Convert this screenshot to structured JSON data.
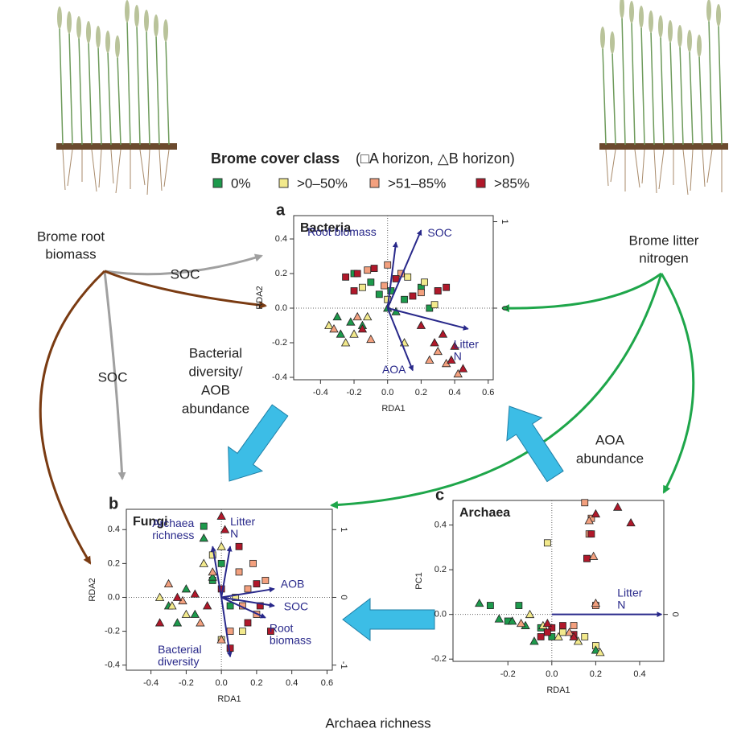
{
  "legend": {
    "title": "Brome cover class",
    "note": "(□A horizon, △B horizon)",
    "items": [
      {
        "label": "0%",
        "color": "#1d9a4c"
      },
      {
        "label": ">0–50%",
        "color": "#f2e98c"
      },
      {
        "label": ">51–85%",
        "color": "#f3a07e"
      },
      {
        "label": ">85%",
        "color": "#b0182a"
      }
    ]
  },
  "labels": {
    "root": [
      "Brome root",
      "biomass"
    ],
    "litter": [
      "Brome litter",
      "nitrogen"
    ],
    "soc1": "SOC",
    "soc2": "SOC",
    "bact": [
      "Bacterial",
      "diversity/",
      "AOB",
      "abundance"
    ],
    "aoa": [
      "AOA",
      "abundance"
    ],
    "arch": "Archaea richness"
  },
  "chart_data": [
    {
      "type": "scatter",
      "panel": "a",
      "title": "Bacteria",
      "x_label": "RDA1",
      "y_label": "RDA2",
      "xlim": [
        -0.56,
        0.63
      ],
      "ylim": [
        -0.414,
        0.535
      ],
      "xticks": [
        -0.4,
        -0.2,
        {
          "value": 0,
          "label": "0.0"
        },
        0.2,
        0.4,
        0.6
      ],
      "yticks": [
        -0.4,
        -0.2,
        {
          "value": 0,
          "label": "0.0"
        },
        0.2,
        0.4
      ],
      "y2lim": [
        -0.828,
        1.07
      ],
      "y2ticks": [
        0,
        1
      ],
      "series": [
        {
          "name": "0%",
          "marker": "square",
          "color": "#1d9a4c",
          "x": [
            -0.2,
            -0.1,
            0.02,
            0.1,
            0.2,
            0.25,
            -0.05
          ],
          "y": [
            0.2,
            0.15,
            0.1,
            0.05,
            0.12,
            0.0,
            0.08
          ]
        },
        {
          "name": ">0–50%",
          "marker": "square",
          "color": "#f2e98c",
          "x": [
            -0.15,
            0.0,
            0.12,
            0.28,
            0.22
          ],
          "y": [
            0.12,
            0.05,
            0.18,
            0.02,
            0.15
          ]
        },
        {
          "name": ">51–85%",
          "marker": "square",
          "color": "#f3a07e",
          "x": [
            -0.12,
            -0.02,
            0.08,
            0.2,
            0.3,
            0.0
          ],
          "y": [
            0.22,
            0.13,
            0.2,
            0.09,
            0.1,
            0.25
          ]
        },
        {
          "name": ">85%",
          "marker": "square",
          "color": "#b0182a",
          "x": [
            -0.25,
            -0.18,
            -0.08,
            0.05,
            0.15,
            0.3,
            0.35,
            -0.2
          ],
          "y": [
            0.18,
            0.2,
            0.23,
            0.17,
            0.07,
            0.1,
            0.12,
            0.1
          ]
        },
        {
          "name": "0%",
          "marker": "triangle",
          "color": "#1d9a4c",
          "x": [
            -0.3,
            -0.22,
            -0.15,
            0.0,
            0.05,
            -0.28
          ],
          "y": [
            -0.05,
            -0.08,
            -0.1,
            0.0,
            -0.02,
            -0.15
          ]
        },
        {
          "name": ">0–50%",
          "marker": "triangle",
          "color": "#f2e98c",
          "x": [
            -0.35,
            -0.25,
            -0.2,
            -0.12,
            0.1
          ],
          "y": [
            -0.1,
            -0.2,
            -0.15,
            -0.05,
            -0.2
          ]
        },
        {
          "name": ">51–85%",
          "marker": "triangle",
          "color": "#f3a07e",
          "x": [
            -0.32,
            -0.18,
            -0.1,
            0.25,
            0.3,
            0.35,
            0.42
          ],
          "y": [
            -0.12,
            -0.05,
            -0.18,
            -0.3,
            -0.25,
            -0.32,
            -0.38
          ]
        },
        {
          "name": ">85%",
          "marker": "triangle",
          "color": "#b0182a",
          "x": [
            -0.15,
            0.2,
            0.28,
            0.33,
            0.38,
            0.4,
            0.45
          ],
          "y": [
            -0.12,
            -0.1,
            -0.2,
            -0.15,
            -0.3,
            -0.22,
            -0.35
          ]
        }
      ],
      "vectors": [
        {
          "label": [
            "Root biomass"
          ],
          "x": 0.05,
          "y": 0.38
        },
        {
          "label": [
            "SOC"
          ],
          "x": 0.2,
          "y": 0.45
        },
        {
          "label": [
            "Litter",
            "N"
          ],
          "x": 0.48,
          "y": -0.12
        },
        {
          "label": [
            "AOA"
          ],
          "x": 0.15,
          "y": -0.36
        }
      ]
    },
    {
      "type": "scatter",
      "panel": "b",
      "title": "Fungi",
      "x_label": "RDA1",
      "y_label": "RDA2",
      "xlim": [
        -0.54,
        0.63
      ],
      "ylim": [
        -0.43,
        0.52
      ],
      "xticks": [
        -0.4,
        -0.2,
        {
          "value": 0,
          "label": "0.0"
        },
        0.2,
        0.4,
        0.6
      ],
      "yticks": [
        -0.4,
        -0.2,
        {
          "value": 0,
          "label": "0.0"
        },
        0.2,
        0.4
      ],
      "y2lim": [
        -1.075,
        1.3
      ],
      "y2ticks": [
        -1,
        0,
        1
      ],
      "series": [
        {
          "name": "0%",
          "marker": "square",
          "color": "#1d9a4c",
          "x": [
            -0.1,
            0.0,
            0.05,
            -0.05
          ],
          "y": [
            0.42,
            0.2,
            -0.05,
            0.1
          ]
        },
        {
          "name": ">0–50%",
          "marker": "square",
          "color": "#f2e98c",
          "x": [
            -0.05,
            0.08,
            0.12,
            0.0
          ],
          "y": [
            0.25,
            0.0,
            -0.2,
            -0.25
          ]
        },
        {
          "name": ">51–85%",
          "marker": "square",
          "color": "#f3a07e",
          "x": [
            0.1,
            0.15,
            0.2,
            0.25,
            0.05,
            0.18,
            0.12
          ],
          "y": [
            0.15,
            0.05,
            -0.1,
            0.1,
            -0.2,
            0.2,
            -0.05
          ]
        },
        {
          "name": ">85%",
          "marker": "square",
          "color": "#b0182a",
          "x": [
            0.1,
            0.15,
            0.22,
            0.28,
            0.2,
            0.05,
            0.0
          ],
          "y": [
            0.3,
            -0.15,
            -0.05,
            -0.2,
            0.08,
            -0.3,
            0.05
          ]
        },
        {
          "name": "0%",
          "marker": "triangle",
          "color": "#1d9a4c",
          "x": [
            -0.3,
            -0.2,
            -0.1,
            -0.05,
            -0.15,
            -0.25
          ],
          "y": [
            -0.05,
            0.05,
            0.35,
            0.12,
            -0.1,
            -0.15
          ]
        },
        {
          "name": ">0–50%",
          "marker": "triangle",
          "color": "#f2e98c",
          "x": [
            -0.35,
            -0.2,
            -0.1,
            0.0,
            -0.28
          ],
          "y": [
            0.0,
            -0.1,
            0.2,
            0.3,
            -0.05
          ]
        },
        {
          "name": ">51–85%",
          "marker": "triangle",
          "color": "#f3a07e",
          "x": [
            -0.3,
            -0.22,
            -0.12,
            -0.05,
            0.0
          ],
          "y": [
            0.08,
            -0.02,
            -0.15,
            0.15,
            -0.25
          ]
        },
        {
          "name": ">85%",
          "marker": "triangle",
          "color": "#b0182a",
          "x": [
            -0.35,
            -0.25,
            -0.15,
            0.0,
            -0.08,
            0.02
          ],
          "y": [
            -0.15,
            0.0,
            0.02,
            0.48,
            -0.05,
            0.4
          ]
        }
      ],
      "vectors": [
        {
          "label": [
            "Archaea",
            "richness"
          ],
          "x": -0.05,
          "y": 0.3
        },
        {
          "label": [
            "Litter",
            "N"
          ],
          "x": 0.05,
          "y": 0.3
        },
        {
          "label": [
            "AOB"
          ],
          "x": 0.3,
          "y": 0.05
        },
        {
          "label": [
            "SOC"
          ],
          "x": 0.3,
          "y": -0.05
        },
        {
          "label": [
            "Root",
            "biomass"
          ],
          "x": 0.25,
          "y": -0.12
        },
        {
          "label": [
            "Bacterial",
            "diversity"
          ],
          "x": 0.05,
          "y": -0.35
        }
      ]
    },
    {
      "type": "scatter",
      "panel": "c",
      "title": "Archaea",
      "x_label": "RDA1",
      "y_label": "PC1",
      "xlim": [
        -0.45,
        0.51
      ],
      "ylim": [
        -0.21,
        0.51
      ],
      "xticks": [
        -0.2,
        {
          "value": 0,
          "label": "0.0"
        },
        0.2,
        0.4
      ],
      "yticks": [
        -0.2,
        {
          "value": 0,
          "label": "0.0"
        },
        0.2,
        0.4
      ],
      "y2lim": [
        -0.21,
        0.51
      ],
      "y2ticks": [
        0
      ],
      "series": [
        {
          "name": "0%",
          "marker": "square",
          "color": "#1d9a4c",
          "x": [
            -0.28,
            -0.15,
            -0.2,
            -0.05,
            0.0
          ],
          "y": [
            0.04,
            0.04,
            -0.03,
            -0.06,
            -0.1
          ]
        },
        {
          "name": ">0–50%",
          "marker": "square",
          "color": "#f2e98c",
          "x": [
            -0.02,
            0.15,
            0.2,
            0.05
          ],
          "y": [
            0.32,
            -0.1,
            -0.14,
            -0.08
          ]
        },
        {
          "name": ">51–85%",
          "marker": "square",
          "color": "#f3a07e",
          "x": [
            0.15,
            0.17,
            0.16,
            0.18,
            0.2,
            0.1
          ],
          "y": [
            0.5,
            0.36,
            0.25,
            0.43,
            0.04,
            -0.05
          ]
        },
        {
          "name": ">85%",
          "marker": "square",
          "color": "#b0182a",
          "x": [
            0.0,
            -0.02,
            0.1,
            0.16,
            0.18,
            0.05,
            -0.05
          ],
          "y": [
            -0.06,
            -0.08,
            -0.09,
            0.25,
            0.36,
            -0.05,
            -0.1
          ]
        },
        {
          "name": "0%",
          "marker": "triangle",
          "color": "#1d9a4c",
          "x": [
            -0.33,
            -0.24,
            -0.18,
            -0.12,
            -0.08,
            0.2
          ],
          "y": [
            0.05,
            -0.02,
            -0.03,
            -0.05,
            -0.12,
            -0.16
          ]
        },
        {
          "name": ">0–50%",
          "marker": "triangle",
          "color": "#f2e98c",
          "x": [
            -0.1,
            -0.04,
            0.03,
            0.12,
            0.22
          ],
          "y": [
            0.0,
            -0.05,
            -0.1,
            -0.12,
            -0.17
          ]
        },
        {
          "name": ">51–85%",
          "marker": "triangle",
          "color": "#f3a07e",
          "x": [
            0.17,
            0.19,
            0.2,
            -0.14,
            0.08
          ],
          "y": [
            0.42,
            0.26,
            0.05,
            -0.04,
            -0.08
          ]
        },
        {
          "name": ">85%",
          "marker": "triangle",
          "color": "#b0182a",
          "x": [
            0.3,
            0.36,
            0.2,
            -0.02,
            0.1
          ],
          "y": [
            0.48,
            0.41,
            0.45,
            -0.04,
            -0.1
          ]
        }
      ],
      "vectors": [
        {
          "label": [
            "Litter",
            "N"
          ],
          "x": 0.5,
          "y": 0
        }
      ]
    }
  ]
}
